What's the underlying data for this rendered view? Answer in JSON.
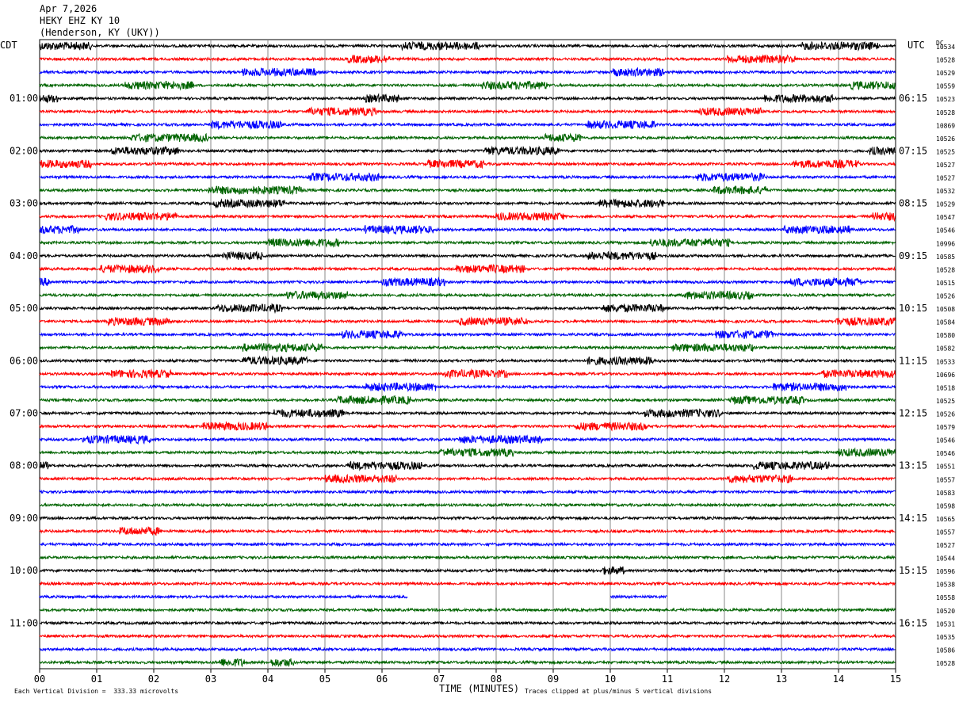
{
  "header": {
    "date": "Apr 7,2026",
    "station": "HEKY EHZ KY 10",
    "location": "(Henderson, KY (UKY))"
  },
  "left_tz": "CDT",
  "right_tz": "UTC",
  "dc_label": "DC",
  "footer": {
    "xlabel": "TIME (MINUTES)",
    "scale_note": "Each Vertical Division =  333.33 microvolts",
    "clip_note": "Traces clipped at plus/minus 5 vertical divisions"
  },
  "colors": {
    "black": "#000000",
    "red": "#ff0000",
    "blue": "#0000ff",
    "green": "#006400"
  },
  "chart_data": {
    "type": "line",
    "xlabel": "TIME (MINUTES)",
    "xlim": [
      0,
      15
    ],
    "x_ticks": [
      "00",
      "01",
      "02",
      "03",
      "04",
      "05",
      "06",
      "07",
      "08",
      "09",
      "10",
      "11",
      "12",
      "13",
      "14",
      "15"
    ],
    "color_cycle": [
      "black",
      "red",
      "blue",
      "green"
    ],
    "left_time_labels": [
      "01:00",
      "02:00",
      "03:00",
      "04:00",
      "05:00",
      "06:00",
      "07:00",
      "08:00",
      "09:00",
      "10:00",
      "11:00"
    ],
    "right_time_labels": [
      "06:15",
      "07:15",
      "08:15",
      "09:15",
      "10:15",
      "11:15",
      "12:15",
      "13:15",
      "14:15",
      "15:15",
      "16:15"
    ],
    "dc_offsets": [
      "10534",
      "10528",
      "10529",
      "10559",
      "10523",
      "10528",
      "10869",
      "10526",
      "10525",
      "10527",
      "10527",
      "10532",
      "10529",
      "10547",
      "10546",
      "10996",
      "10585",
      "10528",
      "10515",
      "10526",
      "10508",
      "10584",
      "10580",
      "10582",
      "10533",
      "10696",
      "10518",
      "10525",
      "10526",
      "10579",
      "10546",
      "10546",
      "10551",
      "10557",
      "10583",
      "10598",
      "10565",
      "10557",
      "10527",
      "10544",
      "10596",
      "10538",
      "10558",
      "10520",
      "10531",
      "10535",
      "10586",
      "10528"
    ],
    "bursts": [
      [
        [
          0,
          0.9
        ],
        [
          6.35,
          7.7
        ],
        [
          13.35,
          14.7
        ]
      ],
      [
        [
          5.4,
          6.15
        ],
        [
          12.05,
          13.25
        ]
      ],
      [
        [
          3.55,
          4.85
        ],
        [
          10.05,
          10.95
        ]
      ],
      [
        [
          1.5,
          2.7
        ],
        [
          7.75,
          8.9
        ],
        [
          14.2,
          15
        ]
      ],
      [
        [
          0,
          0.35
        ],
        [
          5.7,
          6.3
        ],
        [
          12.7,
          13.9
        ]
      ],
      [
        [
          4.7,
          5.9
        ],
        [
          11.55,
          12.65
        ]
      ],
      [
        [
          3,
          4.25
        ],
        [
          9.6,
          10.8
        ]
      ],
      [
        [
          1.6,
          2.95
        ],
        [
          8.85,
          9.5
        ]
      ],
      [
        [
          1.25,
          2.45
        ],
        [
          7.8,
          9.1
        ],
        [
          14.55,
          15
        ]
      ],
      [
        [
          0,
          0.9
        ],
        [
          6.8,
          7.8
        ],
        [
          13.2,
          14.35
        ]
      ],
      [
        [
          4.7,
          5.95
        ],
        [
          11.5,
          12.7
        ]
      ],
      [
        [
          2.95,
          4.6
        ],
        [
          11.8,
          12.75
        ]
      ],
      [
        [
          3.05,
          4.3
        ],
        [
          9.8,
          10.95
        ]
      ],
      [
        [
          1.15,
          2.4
        ],
        [
          8,
          9.2
        ],
        [
          14.6,
          15
        ]
      ],
      [
        [
          0,
          0.7
        ],
        [
          5.7,
          6.9
        ],
        [
          13.05,
          14.2
        ]
      ],
      [
        [
          4,
          5.25
        ],
        [
          10.7,
          12.1
        ]
      ],
      [
        [
          3.2,
          3.9
        ],
        [
          9.6,
          10.8
        ]
      ],
      [
        [
          1.05,
          2.1
        ],
        [
          7.3,
          8.5
        ]
      ],
      [
        [
          0,
          0.2
        ],
        [
          6,
          7.1
        ],
        [
          13.15,
          14.4
        ]
      ],
      [
        [
          4.3,
          5.4
        ],
        [
          11.3,
          12.5
        ]
      ],
      [
        [
          3.1,
          4.25
        ],
        [
          9.85,
          10.95
        ]
      ],
      [
        [
          1.2,
          2.3
        ],
        [
          7.35,
          8.55
        ],
        [
          13.95,
          15
        ]
      ],
      [
        [
          5.3,
          6.35
        ],
        [
          11.85,
          12.85
        ]
      ],
      [
        [
          3.55,
          4.95
        ],
        [
          11.1,
          12.5
        ]
      ],
      [
        [
          3.55,
          4.7
        ],
        [
          9.6,
          10.75
        ]
      ],
      [
        [
          1.25,
          2.3
        ],
        [
          7.1,
          8.2
        ],
        [
          13.7,
          15
        ]
      ],
      [
        [
          5.7,
          6.95
        ],
        [
          12.85,
          14.2
        ]
      ],
      [
        [
          5.2,
          6.5
        ],
        [
          12.1,
          13.4
        ]
      ],
      [
        [
          4.1,
          5.35
        ],
        [
          10.6,
          11.95
        ]
      ],
      [
        [
          2.85,
          4.0
        ],
        [
          9.4,
          10.65
        ]
      ],
      [
        [
          0.75,
          1.95
        ],
        [
          7.35,
          8.8
        ]
      ],
      [
        [
          7,
          8.3
        ],
        [
          14,
          15
        ]
      ],
      [
        [
          0,
          0.15
        ],
        [
          5.4,
          6.7
        ],
        [
          12.5,
          13.85
        ]
      ],
      [
        [
          5,
          6.25
        ],
        [
          12.05,
          13.2
        ]
      ],
      [],
      [],
      [],
      [
        [
          1.4,
          2.1
        ]
      ],
      [],
      [],
      [
        [
          9.85,
          10.25
        ]
      ],
      [],
      [],
      [],
      [],
      [],
      [],
      [
        [
          3.15,
          3.6
        ],
        [
          4.05,
          4.45
        ]
      ]
    ],
    "gaps": [
      [],
      [],
      [],
      [],
      [],
      [],
      [],
      [],
      [],
      [],
      [],
      [],
      [],
      [],
      [],
      [],
      [],
      [],
      [],
      [],
      [],
      [],
      [],
      [],
      [],
      [],
      [],
      [],
      [],
      [],
      [],
      [],
      [],
      [],
      [],
      [],
      [],
      [],
      [],
      [],
      [],
      [],
      [
        [
          6.45,
          10.0
        ],
        [
          11.0,
          15
        ]
      ],
      [],
      [],
      [],
      [],
      []
    ]
  }
}
